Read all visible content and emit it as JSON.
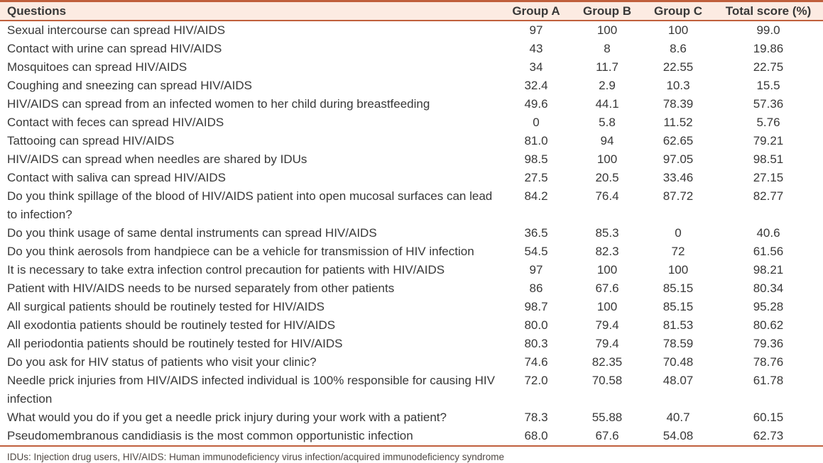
{
  "colors": {
    "accent_border": "#c05f3c",
    "header_bg": "#fcebe2",
    "text": "#383838",
    "footnote_text": "#4f4742"
  },
  "table": {
    "columns": [
      "Questions",
      "Group A",
      "Group B",
      "Group C",
      "Total score (%)"
    ],
    "rows": [
      {
        "question": "Sexual intercourse can spread HIV/AIDS",
        "group_a": "97",
        "group_b": "100",
        "group_c": "100",
        "total": "99.0"
      },
      {
        "question": "Contact with urine can spread HIV/AIDS",
        "group_a": "43",
        "group_b": "8",
        "group_c": "8.6",
        "total": "19.86"
      },
      {
        "question": "Mosquitoes can spread HIV/AIDS",
        "group_a": "34",
        "group_b": "11.7",
        "group_c": "22.55",
        "total": "22.75"
      },
      {
        "question": "Coughing and sneezing can spread HIV/AIDS",
        "group_a": "32.4",
        "group_b": "2.9",
        "group_c": "10.3",
        "total": "15.5"
      },
      {
        "question": "HIV/AIDS can spread from an infected women to her child during breastfeeding",
        "group_a": "49.6",
        "group_b": "44.1",
        "group_c": "78.39",
        "total": "57.36"
      },
      {
        "question": "Contact with feces can spread HIV/AIDS",
        "group_a": "0",
        "group_b": "5.8",
        "group_c": "11.52",
        "total": "5.76"
      },
      {
        "question": "Tattooing can spread HIV/AIDS",
        "group_a": "81.0",
        "group_b": "94",
        "group_c": "62.65",
        "total": "79.21"
      },
      {
        "question": "HIV/AIDS can spread when needles are shared by IDUs",
        "group_a": "98.5",
        "group_b": "100",
        "group_c": "97.05",
        "total": "98.51"
      },
      {
        "question": "Contact with saliva can spread HIV/AIDS",
        "group_a": "27.5",
        "group_b": "20.5",
        "group_c": "33.46",
        "total": "27.15"
      },
      {
        "question": "Do you think spillage of the blood of HIV/AIDS patient into open mucosal surfaces can lead to infection?",
        "group_a": "84.2",
        "group_b": "76.4",
        "group_c": "87.72",
        "total": "82.77"
      },
      {
        "question": "Do you think usage of same dental instruments can spread HIV/AIDS",
        "group_a": "36.5",
        "group_b": "85.3",
        "group_c": "0",
        "total": "40.6"
      },
      {
        "question": "Do you think aerosols from handpiece can be a vehicle for transmission of HIV infection",
        "group_a": "54.5",
        "group_b": "82.3",
        "group_c": "72",
        "total": "61.56"
      },
      {
        "question": "It is necessary to take extra infection control precaution for patients with HIV/AIDS",
        "group_a": "97",
        "group_b": "100",
        "group_c": "100",
        "total": "98.21"
      },
      {
        "question": "Patient with HIV/AIDS needs to be nursed separately from other patients",
        "group_a": "86",
        "group_b": "67.6",
        "group_c": "85.15",
        "total": "80.34"
      },
      {
        "question": "All surgical patients should be routinely tested for HIV/AIDS",
        "group_a": "98.7",
        "group_b": "100",
        "group_c": "85.15",
        "total": "95.28"
      },
      {
        "question": "All exodontia patients should be routinely tested for HIV/AIDS",
        "group_a": "80.0",
        "group_b": "79.4",
        "group_c": "81.53",
        "total": "80.62"
      },
      {
        "question": "All periodontia patients should be routinely tested for HIV/AIDS",
        "group_a": "80.3",
        "group_b": "79.4",
        "group_c": "78.59",
        "total": "79.36"
      },
      {
        "question": "Do you ask for HIV status of patients who visit your clinic?",
        "group_a": "74.6",
        "group_b": "82.35",
        "group_c": "70.48",
        "total": "78.76"
      },
      {
        "question": "Needle prick injuries from HIV/AIDS infected individual is 100% responsible for causing HIV infection",
        "group_a": "72.0",
        "group_b": "70.58",
        "group_c": "48.07",
        "total": "61.78"
      },
      {
        "question": "What would you do if you get a needle prick injury during your work with a patient?",
        "group_a": "78.3",
        "group_b": "55.88",
        "group_c": "40.7",
        "total": "60.15"
      },
      {
        "question": "Pseudomembranous candidiasis is the most common opportunistic infection",
        "group_a": "68.0",
        "group_b": "67.6",
        "group_c": "54.08",
        "total": "62.73"
      }
    ]
  },
  "footnote": "IDUs: Injection drug users, HIV/AIDS: Human immunodeficiency virus infection/acquired immunodeficiency syndrome"
}
